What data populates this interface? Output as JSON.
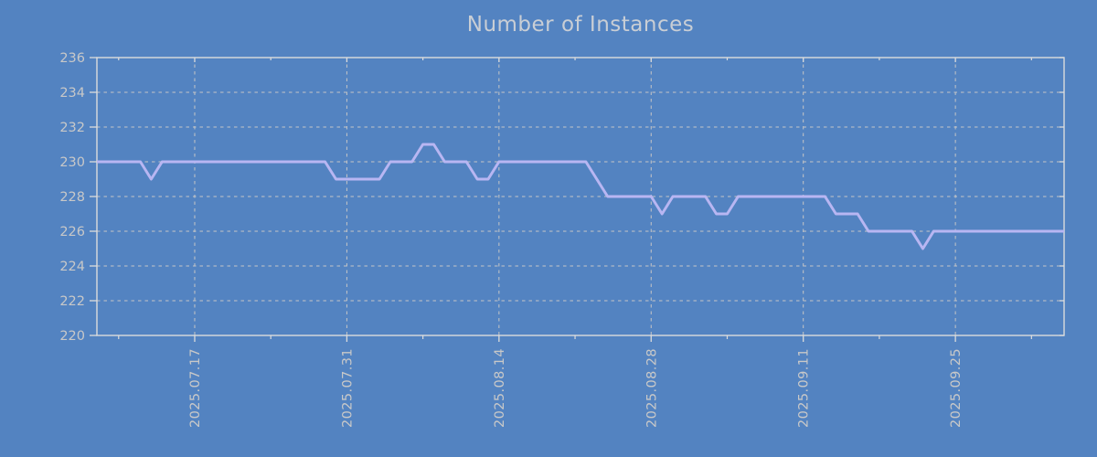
{
  "page": {
    "background": "#5383c1"
  },
  "chart_data": {
    "type": "line",
    "title": "Number of Instances",
    "xlabel": "",
    "ylabel": "",
    "legend": "none",
    "grid": "dotted",
    "ylim": [
      220,
      236
    ],
    "ytick_step": 2,
    "yticks": [
      220,
      222,
      224,
      226,
      228,
      230,
      232,
      234,
      236
    ],
    "x_range": [
      "2025.07.08",
      "2025.10.05"
    ],
    "xtick_labels": [
      "2025.07.17",
      "2025.07.31",
      "2025.08.14",
      "2025.08.28",
      "2025.09.11",
      "2025.09.25"
    ],
    "xtick_indices": [
      9,
      23,
      37,
      51,
      65,
      79
    ],
    "minor_xtick_indices": [
      2,
      16,
      30,
      44,
      58,
      72,
      86
    ],
    "dates": [
      "2025.07.08",
      "2025.07.09",
      "2025.07.10",
      "2025.07.11",
      "2025.07.12",
      "2025.07.13",
      "2025.07.14",
      "2025.07.15",
      "2025.07.16",
      "2025.07.17",
      "2025.07.18",
      "2025.07.19",
      "2025.07.20",
      "2025.07.21",
      "2025.07.22",
      "2025.07.23",
      "2025.07.24",
      "2025.07.25",
      "2025.07.26",
      "2025.07.27",
      "2025.07.28",
      "2025.07.29",
      "2025.07.30",
      "2025.07.31",
      "2025.08.01",
      "2025.08.02",
      "2025.08.03",
      "2025.08.04",
      "2025.08.05",
      "2025.08.06",
      "2025.08.07",
      "2025.08.08",
      "2025.08.09",
      "2025.08.10",
      "2025.08.11",
      "2025.08.12",
      "2025.08.13",
      "2025.08.14",
      "2025.08.15",
      "2025.08.16",
      "2025.08.17",
      "2025.08.18",
      "2025.08.19",
      "2025.08.20",
      "2025.08.21",
      "2025.08.22",
      "2025.08.23",
      "2025.08.24",
      "2025.08.25",
      "2025.08.26",
      "2025.08.27",
      "2025.08.28",
      "2025.08.29",
      "2025.08.30",
      "2025.08.31",
      "2025.09.01",
      "2025.09.02",
      "2025.09.03",
      "2025.09.04",
      "2025.09.05",
      "2025.09.06",
      "2025.09.07",
      "2025.09.08",
      "2025.09.09",
      "2025.09.10",
      "2025.09.11",
      "2025.09.12",
      "2025.09.13",
      "2025.09.14",
      "2025.09.15",
      "2025.09.16",
      "2025.09.17",
      "2025.09.18",
      "2025.09.19",
      "2025.09.20",
      "2025.09.21",
      "2025.09.22",
      "2025.09.23",
      "2025.09.24",
      "2025.09.25",
      "2025.09.26",
      "2025.09.27",
      "2025.09.28",
      "2025.09.29",
      "2025.09.30",
      "2025.10.01",
      "2025.10.02",
      "2025.10.03",
      "2025.10.04",
      "2025.10.05"
    ],
    "values": [
      230,
      230,
      230,
      230,
      230,
      229,
      230,
      230,
      230,
      230,
      230,
      230,
      230,
      230,
      230,
      230,
      230,
      230,
      230,
      230,
      230,
      230,
      229,
      229,
      229,
      229,
      229,
      230,
      230,
      230,
      231,
      231,
      230,
      230,
      230,
      229,
      229,
      230,
      230,
      230,
      230,
      230,
      230,
      230,
      230,
      230,
      229,
      228,
      228,
      228,
      228,
      228,
      227,
      228,
      228,
      228,
      228,
      227,
      227,
      228,
      228,
      228,
      228,
      228,
      228,
      228,
      228,
      228,
      227,
      227,
      227,
      226,
      226,
      226,
      226,
      226,
      225,
      226,
      226,
      226,
      226,
      226,
      226,
      226,
      226,
      226,
      226,
      226,
      226,
      226
    ],
    "colors": {
      "background": "#5383c1",
      "line": "#b8b6f2",
      "grid": "#c6c6c6",
      "border": "#dcdcdc",
      "tick_labels": "#c8c8c8",
      "title": "#c9ced5"
    }
  }
}
